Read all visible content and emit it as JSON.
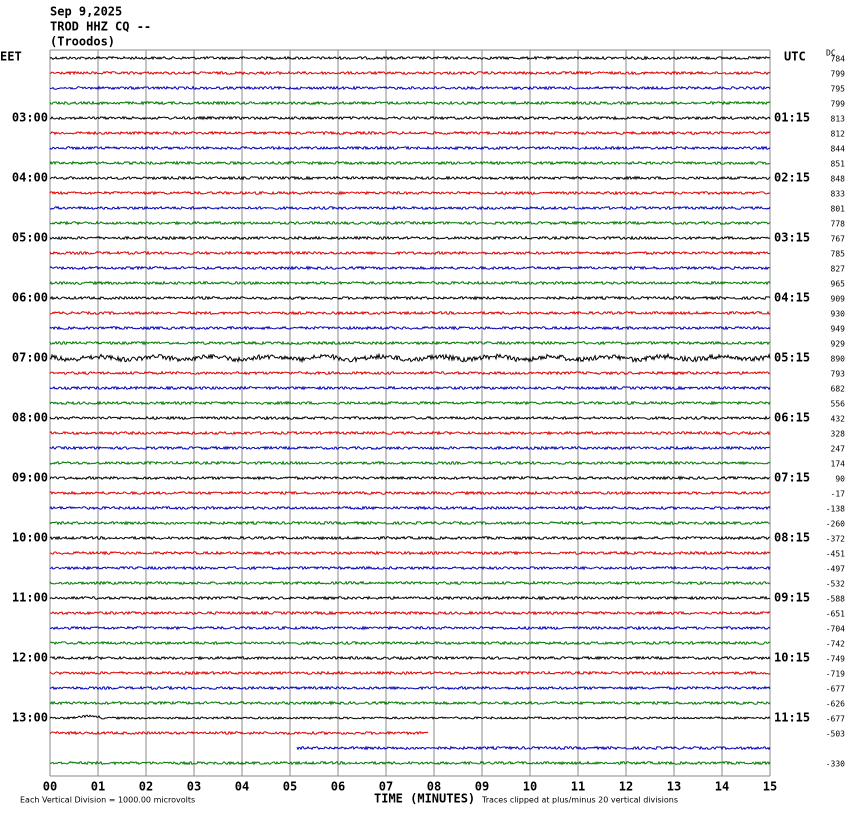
{
  "header": {
    "date": "Sep 9,2025",
    "station": "TROD HHZ CQ --",
    "location": "(Troodos)",
    "left_zone": "EET",
    "right_zone": "UTC",
    "dc_label": "DC"
  },
  "left_labels": [
    "03:00",
    "04:00",
    "05:00",
    "06:00",
    "07:00",
    "08:00",
    "09:00",
    "10:00",
    "11:00",
    "12:00",
    "13:00"
  ],
  "right_labels": [
    "01:15",
    "02:15",
    "03:15",
    "04:15",
    "05:15",
    "06:15",
    "07:15",
    "08:15",
    "09:15",
    "10:15",
    "11:15"
  ],
  "dc_offsets": [
    784,
    799,
    795,
    799,
    813,
    812,
    844,
    851,
    848,
    833,
    801,
    778,
    767,
    785,
    827,
    965,
    909,
    930,
    949,
    929,
    890,
    793,
    682,
    556,
    432,
    328,
    247,
    174,
    90,
    -17,
    -138,
    -260,
    -372,
    -451,
    -497,
    -532,
    -588,
    -651,
    -704,
    -742,
    -749,
    -719,
    -677,
    -626,
    -677,
    -503,
    null,
    -330
  ],
  "x_labels": [
    "00",
    "01",
    "02",
    "03",
    "04",
    "05",
    "06",
    "07",
    "08",
    "09",
    "10",
    "11",
    "12",
    "13",
    "14",
    "15"
  ],
  "footer": {
    "scale_note": "Each Vertical Division = 1000.00 microvolts",
    "x_title": "TIME (MINUTES)",
    "clip_note": "Traces clipped at plus/minus 20 vertical divisions"
  }
}
